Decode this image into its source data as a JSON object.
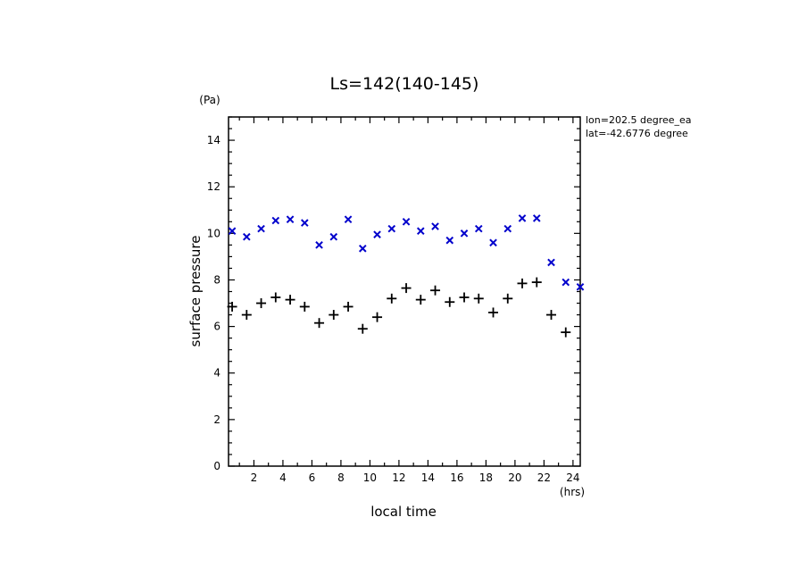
{
  "chart_data": {
    "type": "scatter",
    "title": "Ls=142(140-145)",
    "xlabel": "local time",
    "ylabel": "surface pressure",
    "x_unit": "(hrs)",
    "y_unit": "(Pa)",
    "xlim": [
      0.25,
      24.5
    ],
    "ylim": [
      0,
      15
    ],
    "xticks": [
      2,
      4,
      6,
      8,
      10,
      12,
      14,
      16,
      18,
      20,
      22,
      24
    ],
    "yticks": [
      0,
      2,
      4,
      6,
      8,
      10,
      12,
      14
    ],
    "annotations": [
      "lon=202.5 degree_ea",
      "lat=-42.6776 degree"
    ],
    "grid": false,
    "series": [
      {
        "marker": "x",
        "color": "#0000cc",
        "x": [
          0.5,
          1.5,
          2.5,
          3.5,
          4.5,
          5.5,
          6.5,
          7.5,
          8.5,
          9.5,
          10.5,
          11.5,
          12.5,
          13.5,
          14.5,
          15.5,
          16.5,
          17.5,
          18.5,
          19.5,
          20.5,
          21.5,
          22.5,
          23.5,
          24.5
        ],
        "y": [
          10.1,
          9.85,
          10.2,
          10.55,
          10.6,
          10.45,
          9.5,
          9.85,
          10.6,
          9.35,
          9.95,
          10.2,
          10.5,
          10.1,
          10.3,
          9.7,
          10.0,
          10.2,
          9.6,
          10.2,
          10.65,
          10.65,
          8.75,
          7.9,
          7.7
        ]
      },
      {
        "marker": "+",
        "color": "#000000",
        "x": [
          0.5,
          1.5,
          2.5,
          3.5,
          4.5,
          5.5,
          6.5,
          7.5,
          8.5,
          9.5,
          10.5,
          11.5,
          12.5,
          13.5,
          14.5,
          15.5,
          16.5,
          17.5,
          18.5,
          19.5,
          20.5,
          21.5,
          22.5,
          23.5
        ],
        "y": [
          6.85,
          6.5,
          7.0,
          7.25,
          7.15,
          6.85,
          6.15,
          6.5,
          6.85,
          5.9,
          6.4,
          7.2,
          7.65,
          7.15,
          7.55,
          7.05,
          7.25,
          7.2,
          6.6,
          7.2,
          7.85,
          7.9,
          6.5,
          5.75
        ]
      }
    ]
  }
}
